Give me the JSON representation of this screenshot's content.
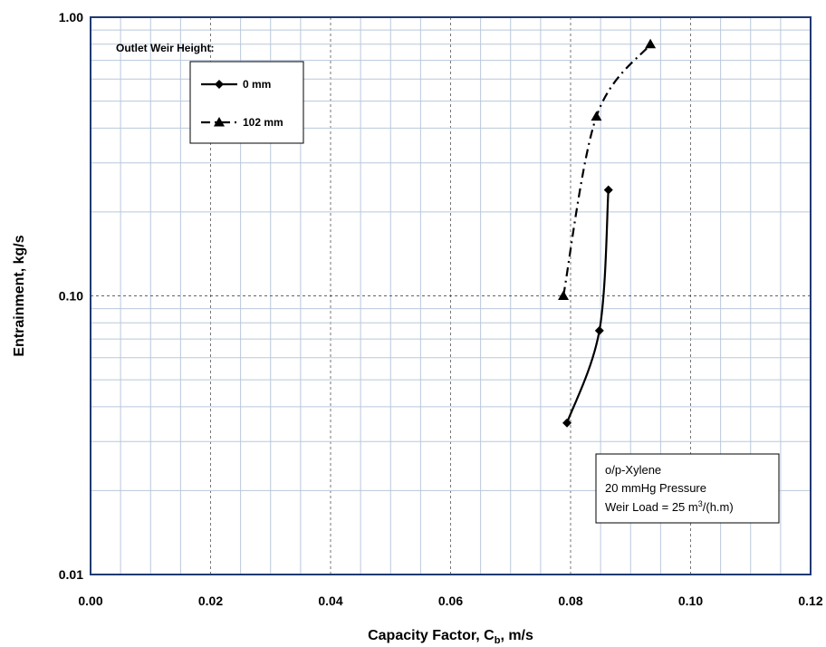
{
  "chart_data": {
    "type": "line",
    "xlabel": "Capacity Factor, C",
    "xlabel_sub": "b",
    "xlabel_suffix": ", m/s",
    "ylabel": "Entrainment,  kg/s",
    "xlim": [
      0.0,
      0.12
    ],
    "ylim": [
      0.01,
      1.0
    ],
    "yscale": "log",
    "x_ticks": [
      "0.00",
      "0.02",
      "0.04",
      "0.06",
      "0.08",
      "0.10",
      "0.12"
    ],
    "y_ticks": [
      "0.01",
      "0.10",
      "1.00"
    ],
    "grid": true,
    "legend": {
      "title": "Outlet Weir Height:",
      "position": "top-left"
    },
    "series": [
      {
        "name": "0 mm",
        "marker": "diamond",
        "line": "solid",
        "x": [
          0.0794,
          0.0848,
          0.0863
        ],
        "y": [
          0.035,
          0.075,
          0.24
        ]
      },
      {
        "name": "102 mm",
        "marker": "triangle",
        "line": "dash-dot",
        "x": [
          0.0788,
          0.0843,
          0.0933
        ],
        "y": [
          0.1,
          0.44,
          0.8
        ]
      }
    ],
    "annotation": {
      "lines": [
        "o/p-Xylene",
        "20 mmHg Pressure"
      ],
      "weir_prefix": "Weir Load = 25 m",
      "weir_sup": "3",
      "weir_suffix": "/(h.m)",
      "position": "bottom-right"
    }
  }
}
